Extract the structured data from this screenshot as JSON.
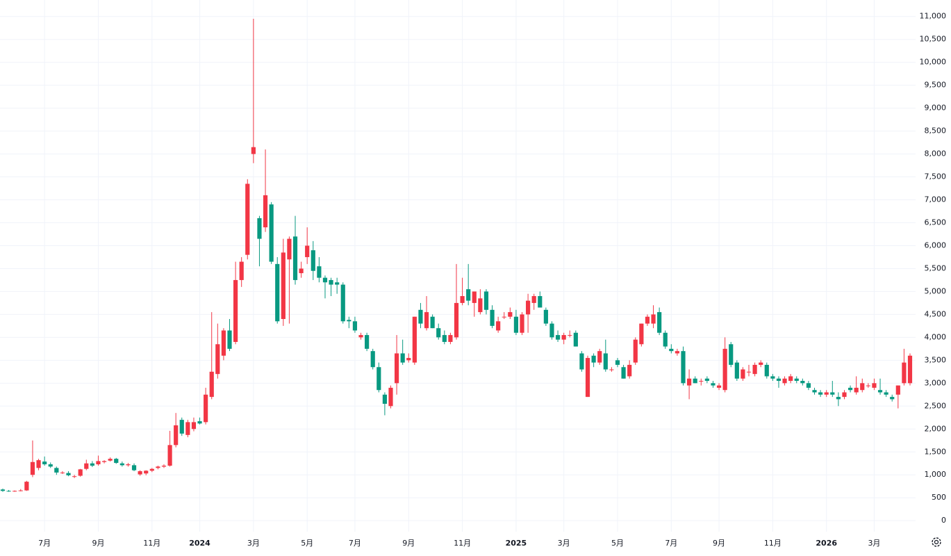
{
  "chart_data": {
    "type": "candlestick",
    "categories": [
      null,
      null,
      null,
      null,
      null,
      null,
      null,
      "7月",
      null,
      null,
      null,
      null,
      null,
      null,
      null,
      null,
      "9月",
      null,
      null,
      null,
      null,
      null,
      null,
      null,
      null,
      "11月",
      null,
      null,
      null,
      null,
      null,
      null,
      null,
      "2024",
      null,
      null,
      null,
      null,
      null,
      null,
      null,
      null,
      "3月",
      null,
      null,
      null,
      null,
      null,
      null,
      null,
      null,
      "5月",
      null,
      null,
      null,
      null,
      null,
      null,
      null,
      "7月",
      null,
      null,
      null,
      null,
      null,
      null,
      null,
      null,
      "9月",
      null,
      null,
      null,
      null,
      null,
      null,
      null,
      null,
      "11月",
      null,
      null,
      null,
      null,
      null,
      null,
      null,
      null,
      "2025",
      null,
      null,
      null,
      null,
      null,
      null,
      null,
      "3月",
      null,
      null,
      null,
      null,
      null,
      null,
      null,
      null,
      "5月",
      null,
      null,
      null,
      null,
      null,
      null,
      null,
      null,
      "7月",
      null,
      null,
      null,
      null,
      null,
      null,
      null,
      "9月",
      null,
      null,
      null,
      null,
      null,
      null,
      null,
      null,
      "11月",
      null,
      null,
      null,
      null,
      null,
      null,
      null,
      null,
      "2026",
      null,
      null,
      null,
      null,
      null,
      null,
      null,
      "3月",
      null,
      null,
      null,
      null,
      null,
      null
    ],
    "open": [
      680,
      650,
      640,
      650,
      660,
      1000,
      1150,
      1290,
      1230,
      1150,
      1050,
      1040,
      960,
      980,
      1130,
      1250,
      1230,
      1280,
      1310,
      1350,
      1250,
      1210,
      1210,
      1010,
      1030,
      1090,
      1150,
      1180,
      1200,
      1650,
      2200,
      1870,
      2000,
      2170,
      2150,
      2700,
      3200,
      3600,
      4150,
      3900,
      5250,
      5800,
      8000,
      6600,
      6400,
      6900,
      5600,
      4400,
      5700,
      6200,
      5400,
      5750,
      5900,
      5550,
      5300,
      5250,
      5200,
      5150,
      4380,
      4350,
      4000,
      4050,
      3700,
      3350,
      2750,
      2500,
      3000,
      3650,
      3500,
      3450,
      4600,
      4200,
      4450,
      4200,
      4050,
      3900,
      4000,
      4750,
      5050,
      4750,
      4550,
      5000,
      4600,
      4150,
      4450,
      4450,
      4450,
      4100,
      4500,
      4750,
      4900,
      4600,
      4300,
      4050,
      3950,
      4050,
      4100,
      3650,
      2700,
      3600,
      3450,
      3650,
      3300,
      3500,
      3350,
      3150,
      3450,
      3850,
      4300,
      4300,
      4550,
      4100,
      3750,
      3650,
      3700,
      2950,
      3100,
      3050,
      3100,
      3000,
      2900,
      2850,
      3850,
      3450,
      3100,
      3250,
      3200,
      3400,
      3400,
      3150,
      3100,
      3000,
      3050,
      3100,
      3050,
      3000,
      2850,
      2800,
      2750,
      2800,
      2700,
      2700,
      2900,
      2800,
      2850,
      2950,
      2900,
      2850,
      2800,
      2700,
      2750,
      3000,
      3000
    ],
    "high": [
      700,
      670,
      660,
      690,
      870,
      1750,
      1350,
      1400,
      1270,
      1180,
      1080,
      1080,
      1000,
      1130,
      1330,
      1300,
      1420,
      1320,
      1380,
      1370,
      1290,
      1260,
      1250,
      1100,
      1100,
      1150,
      1200,
      1230,
      1960,
      2350,
      2250,
      2200,
      2250,
      2250,
      2900,
      4550,
      4300,
      4200,
      4400,
      5650,
      5750,
      7450,
      10950,
      6650,
      8100,
      6950,
      5750,
      6150,
      6200,
      6650,
      5650,
      6400,
      6100,
      5750,
      5350,
      5300,
      5300,
      5200,
      4450,
      4450,
      4100,
      4100,
      3750,
      3450,
      2800,
      2950,
      4050,
      3950,
      3650,
      4450,
      4750,
      4900,
      4500,
      4300,
      4150,
      4100,
      5600,
      5300,
      5600,
      5000,
      5050,
      5050,
      4700,
      4450,
      4550,
      4650,
      4600,
      4550,
      4950,
      4950,
      5000,
      4650,
      4350,
      4150,
      4100,
      4150,
      4150,
      3700,
      3600,
      3650,
      3750,
      3950,
      3350,
      3550,
      3400,
      3500,
      4000,
      4300,
      4500,
      4700,
      4650,
      4150,
      3850,
      3750,
      3800,
      3300,
      3150,
      3100,
      3150,
      3050,
      3000,
      4000,
      3900,
      3500,
      3350,
      3400,
      3450,
      3500,
      3450,
      3200,
      3150,
      3150,
      3200,
      3150,
      3100,
      3050,
      2900,
      2850,
      2850,
      3050,
      2800,
      2850,
      2950,
      3150,
      3100,
      3000,
      3100,
      3100,
      2850,
      2750,
      2950,
      3750,
      3650
    ],
    "low": [
      630,
      630,
      630,
      640,
      650,
      950,
      1100,
      1200,
      1150,
      1000,
      1020,
      970,
      930,
      960,
      1100,
      1170,
      1200,
      1250,
      1290,
      1240,
      1180,
      1180,
      1080,
      980,
      990,
      1060,
      1120,
      1150,
      1180,
      1600,
      1850,
      1820,
      1950,
      2100,
      2100,
      2650,
      3100,
      3500,
      3700,
      3850,
      5100,
      5700,
      7800,
      5550,
      6300,
      5600,
      4300,
      4250,
      4300,
      5150,
      5300,
      5600,
      5250,
      5200,
      4850,
      4900,
      4950,
      4300,
      4200,
      4100,
      3950,
      3700,
      3300,
      2800,
      2300,
      2450,
      2750,
      3400,
      3450,
      3400,
      4200,
      4150,
      4200,
      3950,
      3850,
      3850,
      3950,
      4700,
      4700,
      4450,
      4500,
      4500,
      4200,
      4100,
      4400,
      4400,
      4050,
      4050,
      4100,
      4600,
      4650,
      4250,
      3950,
      3900,
      3850,
      4000,
      3800,
      3250,
      2700,
      3350,
      3400,
      3250,
      3250,
      3350,
      3100,
      3100,
      3400,
      3800,
      4250,
      4200,
      4050,
      3750,
      3650,
      3600,
      2950,
      2650,
      3000,
      2950,
      3000,
      2900,
      2850,
      2800,
      3350,
      3050,
      3050,
      3150,
      3150,
      3350,
      3100,
      3050,
      2900,
      2950,
      3000,
      3000,
      2950,
      2850,
      2750,
      2700,
      2700,
      2700,
      2500,
      2650,
      2800,
      2750,
      2800,
      2900,
      2850,
      2750,
      2700,
      2600,
      2450,
      2950,
      2950
    ],
    "close": [
      650,
      640,
      650,
      660,
      850,
      1280,
      1320,
      1230,
      1180,
      1050,
      1050,
      990,
      970,
      1120,
      1250,
      1200,
      1300,
      1300,
      1350,
      1260,
      1210,
      1230,
      1100,
      1080,
      1090,
      1130,
      1180,
      1200,
      1650,
      2080,
      1900,
      2150,
      2150,
      2120,
      2750,
      3250,
      3850,
      4150,
      3750,
      5250,
      5650,
      7350,
      8150,
      6150,
      7100,
      5650,
      4350,
      5850,
      6150,
      5250,
      5500,
      6000,
      5450,
      5300,
      5200,
      5150,
      5150,
      4350,
      4350,
      4150,
      4050,
      3750,
      3350,
      2850,
      2550,
      2900,
      3650,
      3450,
      3550,
      4450,
      4300,
      4550,
      4200,
      4000,
      3900,
      4050,
      4750,
      4900,
      4800,
      5000,
      4850,
      4600,
      4250,
      4350,
      4450,
      4550,
      4100,
      4500,
      4800,
      4900,
      4650,
      4300,
      4000,
      3950,
      4050,
      4050,
      3800,
      3300,
      3550,
      3450,
      3700,
      3300,
      3300,
      3400,
      3100,
      3400,
      3950,
      4300,
      4450,
      4500,
      4100,
      3800,
      3700,
      3700,
      3000,
      3100,
      3000,
      3050,
      3050,
      2950,
      2950,
      3750,
      3400,
      3100,
      3300,
      3250,
      3400,
      3450,
      3150,
      3100,
      3050,
      3100,
      3150,
      3050,
      3000,
      2900,
      2800,
      2750,
      2800,
      2750,
      2650,
      2800,
      2850,
      2900,
      3000,
      2950,
      3000,
      2800,
      2750,
      2650,
      2950,
      3450,
      3600
    ],
    "up_color": "#f23645",
    "down_color": "#089981",
    "ylim": [
      -240,
      11360
    ],
    "yticks": [
      0,
      500,
      {
        "value": 1000,
        "label": "1,000"
      },
      {
        "value": 1500,
        "label": "1,500"
      },
      {
        "value": 2000,
        "label": "2,000"
      },
      {
        "value": 2500,
        "label": "2,500"
      },
      {
        "value": 3000,
        "label": "3,000"
      },
      {
        "value": 3500,
        "label": "3,500"
      },
      {
        "value": 4000,
        "label": "4,000"
      },
      {
        "value": 4500,
        "label": "4,500"
      },
      {
        "value": 5000,
        "label": "5,000"
      },
      {
        "value": 5500,
        "label": "5,500"
      },
      {
        "value": 6000,
        "label": "6,000"
      },
      {
        "value": 6500,
        "label": "6,500"
      },
      {
        "value": 7000,
        "label": "7,000"
      },
      {
        "value": 7500,
        "label": "7,500"
      },
      {
        "value": 8000,
        "label": "8,000"
      },
      {
        "value": 8500,
        "label": "8,500"
      },
      {
        "value": 9000,
        "label": "9,000"
      },
      {
        "value": 9500,
        "label": "9,500"
      },
      {
        "value": 10000,
        "label": "10,000"
      },
      {
        "value": 10500,
        "label": "10,500"
      },
      {
        "value": 11000,
        "label": "11,000"
      }
    ],
    "grid": true
  }
}
